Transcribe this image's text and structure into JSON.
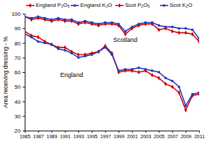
{
  "chart_data": {
    "type": "line",
    "y_label": "Area receiving dressing - %",
    "x": [
      1985,
      1986,
      1987,
      1988,
      1989,
      1990,
      1991,
      1992,
      1993,
      1994,
      1995,
      1996,
      1997,
      1998,
      1999,
      2000,
      2001,
      2002,
      2003,
      2004,
      2005,
      2006,
      2007,
      2008,
      2009,
      2010,
      2011
    ],
    "series": [
      {
        "name": "England P₂O₅",
        "color": "#cc0000",
        "marker": "diamond",
        "values": [
          88,
          85,
          84,
          81,
          79,
          77,
          77,
          74,
          72,
          72,
          73,
          74,
          78,
          73,
          60,
          61,
          61,
          60,
          61,
          58,
          56,
          52,
          50,
          46,
          34,
          44,
          45
        ]
      },
      {
        "name": "England K₂O",
        "color": "#2233bb",
        "marker": "square",
        "values": [
          86,
          84,
          81,
          80,
          79,
          76,
          75,
          73,
          70,
          71,
          72,
          74,
          77,
          72,
          61,
          62,
          62,
          63,
          62,
          61,
          60,
          56,
          54,
          50,
          37,
          45,
          46
        ]
      },
      {
        "name": "Scot P₂O₅",
        "color": "#cc0000",
        "marker": "diamond",
        "values": [
          98,
          96,
          97,
          96,
          95,
          96,
          95,
          95,
          93,
          94,
          93,
          92,
          93,
          93,
          92,
          86,
          90,
          92,
          93,
          93,
          89,
          90,
          88,
          87,
          87,
          86,
          81
        ]
      },
      {
        "name": "Scot K₂O",
        "color": "#2233bb",
        "marker": "square",
        "values": [
          98,
          97,
          98,
          97,
          96,
          97,
          96,
          96,
          94,
          95,
          94,
          93,
          94,
          94,
          93,
          88,
          91,
          93,
          94,
          94,
          92,
          91,
          91,
          90,
          90,
          89,
          83
        ]
      }
    ],
    "annotations": [
      {
        "text": "Scotland",
        "x": 2000,
        "y": 82
      },
      {
        "text": "England",
        "x": 1992,
        "y": 58
      }
    ],
    "xlim": [
      1985,
      2011
    ],
    "xticks": [
      1985,
      1987,
      1989,
      1991,
      1993,
      1995,
      1997,
      1999,
      2001,
      2003,
      2005,
      2007,
      2009,
      2011
    ],
    "ylim": [
      20,
      100
    ],
    "yticks": [
      20,
      30,
      40,
      50,
      60,
      70,
      80,
      90,
      100
    ],
    "grid": false,
    "legend": "top"
  }
}
